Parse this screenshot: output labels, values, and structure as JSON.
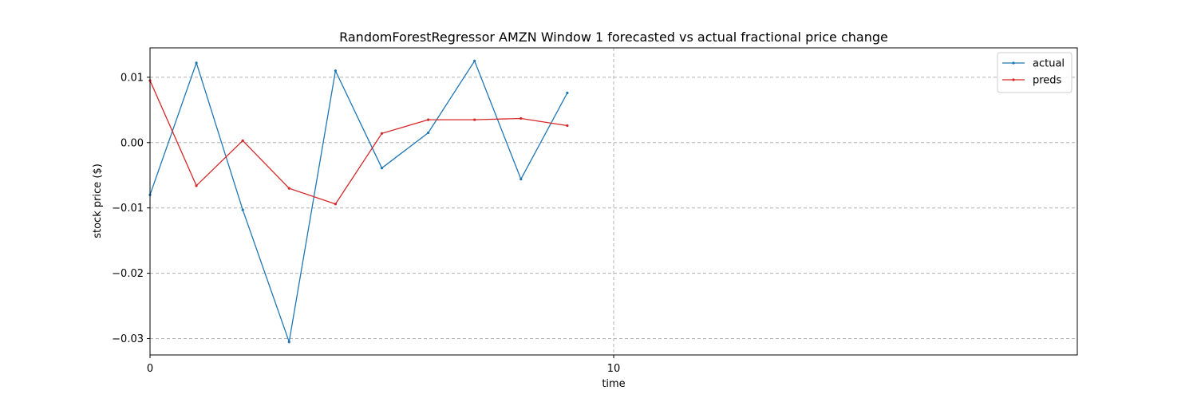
{
  "chart_data": {
    "type": "line",
    "title": "RandomForestRegressor AMZN Window 1 forecasted vs actual fractional price change",
    "xlabel": "time",
    "ylabel": "stock price ($)",
    "xlim": [
      0,
      20
    ],
    "ylim": [
      -0.0325,
      0.0145
    ],
    "x_ticks": [
      0,
      10
    ],
    "x_tick_labels": [
      "0",
      "10"
    ],
    "y_ticks": [
      0.01,
      0.0,
      -0.01,
      -0.02,
      -0.03
    ],
    "y_tick_labels": [
      "0.01",
      "0.00",
      "−0.01",
      "−0.02",
      "−0.03"
    ],
    "grid": true,
    "legend_position": "top-right",
    "x": [
      0,
      1,
      2,
      3,
      4,
      5,
      6,
      7,
      8,
      9
    ],
    "series": [
      {
        "name": "actual",
        "color": "#1f77b4",
        "values": [
          -0.008,
          0.0122,
          -0.0103,
          -0.0305,
          0.011,
          -0.0039,
          0.0015,
          0.0125,
          -0.0056,
          0.0076
        ]
      },
      {
        "name": "preds",
        "color": "#d62728",
        "values": [
          0.0095,
          -0.0066,
          0.0003,
          -0.007,
          -0.0094,
          0.0014,
          0.0035,
          0.0035,
          0.0037,
          0.0026
        ]
      }
    ]
  }
}
